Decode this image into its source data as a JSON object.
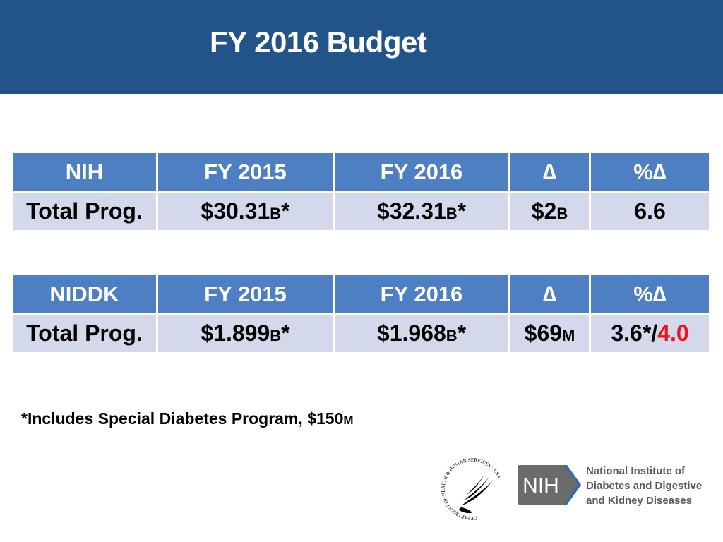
{
  "header": {
    "title": "FY 2016 Budget",
    "background_color": "#225489"
  },
  "nih_table": {
    "headers": [
      "NIH",
      "FY 2015",
      "FY 2016",
      "∆",
      "%∆"
    ],
    "row": {
      "label": "Total Prog.",
      "fy2015_value": "$30.31",
      "fy2015_unit": "B",
      "fy2015_suffix": "*",
      "fy2016_value": "$32.31",
      "fy2016_unit": "B",
      "fy2016_suffix": "*",
      "delta_value": "$2",
      "delta_unit": "B",
      "pct_delta": "6.6"
    }
  },
  "niddk_table": {
    "headers": [
      "NIDDK",
      "FY 2015",
      "FY 2016",
      "∆",
      "%∆"
    ],
    "row": {
      "label": "Total Prog.",
      "fy2015_value": "$1.899",
      "fy2015_unit": "B",
      "fy2015_suffix": "*",
      "fy2016_value": "$1.968",
      "fy2016_unit": "B",
      "fy2016_suffix": "*",
      "delta_value": "$69",
      "delta_unit": "M",
      "pct_delta_a": "3.6*/",
      "pct_delta_b": "4.0"
    }
  },
  "colors": {
    "header_cell": "#4e7fc3",
    "body_cell": "#d3d9ea",
    "highlight": "#e8151f"
  },
  "footnote": {
    "text": "*Includes Special Diabetes Program, $150",
    "unit": "M"
  },
  "logos": {
    "hhs_seal_text": "DEPARTMENT OF HEALTH & HUMAN SERVICES · USA",
    "nih_badge": "NIH",
    "institute_line1": "National Institute of",
    "institute_line2": "Diabetes and Digestive",
    "institute_line3": "and Kidney Diseases"
  }
}
